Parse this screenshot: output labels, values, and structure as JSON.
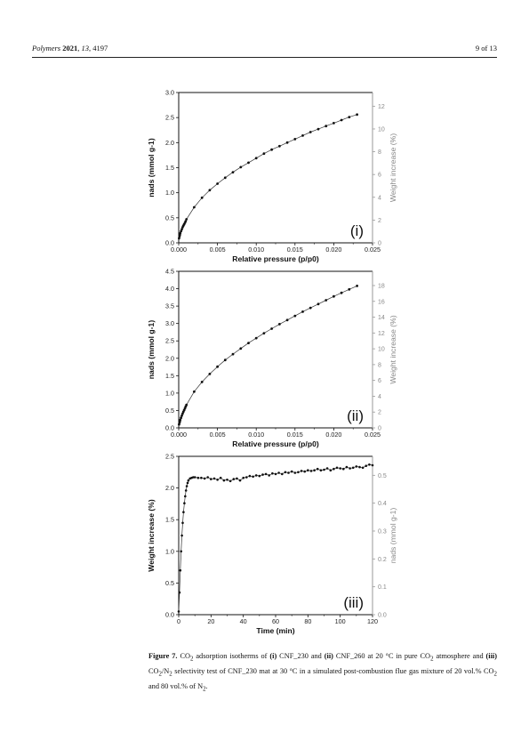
{
  "header": {
    "journal": "Polymers",
    "year": "2021",
    "volume": "13",
    "article": "4197",
    "page": "9 of 13"
  },
  "caption": {
    "label": "Figure 7.",
    "text_parts": [
      {
        "t": "CO"
      },
      {
        "sub": "2"
      },
      {
        "t": " adsorption isotherms of "
      },
      {
        "b": "(i)"
      },
      {
        "t": " CNF_230 and "
      },
      {
        "b": "(ii)"
      },
      {
        "t": " CNF_260 at 20 °C in pure CO"
      },
      {
        "sub": "2"
      },
      {
        "t": " atmosphere and "
      },
      {
        "b": "(iii)"
      },
      {
        "t": " CO"
      },
      {
        "sub": "2"
      },
      {
        "t": "/N"
      },
      {
        "sub": "2"
      },
      {
        "t": " selectivity test of CNF_230 mat at 30 °C in a simulated post-combustion flue gas mixture of 20 vol.% CO"
      },
      {
        "sub": "2"
      },
      {
        "t": " and 80 vol.% of N"
      },
      {
        "sub": "2"
      },
      {
        "t": "."
      }
    ]
  },
  "chart_data": [
    {
      "type": "scatter",
      "panel_label": "(i)",
      "xlabel": "Relative pressure (p/p0)",
      "ylabel": "nads (mmol g-1)",
      "y2label": "Weight increase (%)",
      "xlim": [
        0,
        0.025
      ],
      "ylim": [
        0,
        3.0
      ],
      "y2lim": [
        0,
        13.2
      ],
      "xticks": [
        "0.000",
        "0.005",
        "0.010",
        "0.015",
        "0.020",
        "0.025"
      ],
      "yticks": [
        "0.0",
        "0.5",
        "1.0",
        "1.5",
        "2.0",
        "2.5",
        "3.0"
      ],
      "y2ticks": [
        "0",
        "2",
        "4",
        "6",
        "8",
        "10",
        "12"
      ],
      "series": [
        {
          "x": [
            5e-05,
            0.0001,
            0.00015,
            0.0002,
            0.0003,
            0.0004,
            0.0005,
            0.0006,
            0.0007,
            0.0008,
            0.0009,
            0.001,
            0.002,
            0.003,
            0.004,
            0.005,
            0.006,
            0.007,
            0.008,
            0.009,
            0.01,
            0.011,
            0.012,
            0.013,
            0.014,
            0.015,
            0.016,
            0.017,
            0.018,
            0.019,
            0.02,
            0.021,
            0.022,
            0.023
          ],
          "y": [
            0.09,
            0.13,
            0.16,
            0.19,
            0.23,
            0.27,
            0.31,
            0.34,
            0.37,
            0.4,
            0.43,
            0.47,
            0.71,
            0.9,
            1.05,
            1.18,
            1.3,
            1.41,
            1.51,
            1.6,
            1.69,
            1.78,
            1.86,
            1.93,
            2.0,
            2.07,
            2.14,
            2.21,
            2.27,
            2.33,
            2.39,
            2.45,
            2.51,
            2.56
          ]
        }
      ]
    },
    {
      "type": "scatter",
      "panel_label": "(ii)",
      "xlabel": "Relative pressure (p/p0)",
      "ylabel": "nads (mmol g-1)",
      "y2label": "Weight increase (%)",
      "xlim": [
        0,
        0.025
      ],
      "ylim": [
        0,
        4.5
      ],
      "y2lim": [
        0,
        19.8
      ],
      "xticks": [
        "0.000",
        "0.005",
        "0.010",
        "0.015",
        "0.020",
        "0.025"
      ],
      "yticks": [
        "0.0",
        "0.5",
        "1.0",
        "1.5",
        "2.0",
        "2.5",
        "3.0",
        "3.5",
        "4.0",
        "4.5"
      ],
      "y2ticks": [
        "0",
        "2",
        "4",
        "6",
        "8",
        "10",
        "12",
        "14",
        "16",
        "18"
      ],
      "series": [
        {
          "x": [
            5e-05,
            0.0001,
            0.00015,
            0.0002,
            0.0003,
            0.0004,
            0.0005,
            0.0006,
            0.0007,
            0.0008,
            0.0009,
            0.001,
            0.002,
            0.003,
            0.004,
            0.005,
            0.006,
            0.007,
            0.008,
            0.009,
            0.01,
            0.011,
            0.012,
            0.013,
            0.014,
            0.015,
            0.016,
            0.017,
            0.018,
            0.019,
            0.02,
            0.021,
            0.022,
            0.023
          ],
          "y": [
            0.1,
            0.15,
            0.19,
            0.23,
            0.29,
            0.35,
            0.41,
            0.46,
            0.51,
            0.56,
            0.61,
            0.66,
            1.04,
            1.32,
            1.55,
            1.76,
            1.95,
            2.12,
            2.28,
            2.44,
            2.58,
            2.72,
            2.85,
            2.98,
            3.1,
            3.22,
            3.34,
            3.45,
            3.56,
            3.67,
            3.78,
            3.88,
            3.98,
            4.08
          ]
        }
      ]
    },
    {
      "type": "scatter",
      "panel_label": "(iii)",
      "xlabel": "Time (min)",
      "ylabel": "Weight increase (%)",
      "y2label": "nads (mmol g-1)",
      "xlim": [
        0,
        120
      ],
      "ylim": [
        0,
        2.5
      ],
      "y2lim": [
        0,
        0.568
      ],
      "xticks": [
        "0",
        "20",
        "40",
        "60",
        "80",
        "100",
        "120"
      ],
      "yticks": [
        "0.0",
        "0.5",
        "1.0",
        "1.5",
        "2.0",
        "2.5"
      ],
      "y2ticks": [
        "0.0",
        "0.1",
        "0.2",
        "0.3",
        "0.4",
        "0.5"
      ],
      "series": [
        {
          "x": [
            0,
            0.5,
            1,
            1.5,
            2,
            2.5,
            3,
            3.5,
            4,
            4.5,
            5,
            5.5,
            6,
            7,
            8,
            9,
            10,
            12,
            14,
            16,
            18,
            20,
            22,
            24,
            26,
            28,
            30,
            32,
            34,
            36,
            38,
            40,
            42,
            44,
            46,
            48,
            50,
            52,
            54,
            56,
            58,
            60,
            62,
            64,
            66,
            68,
            70,
            72,
            74,
            76,
            78,
            80,
            82,
            84,
            86,
            88,
            90,
            92,
            94,
            96,
            98,
            100,
            102,
            104,
            106,
            108,
            110,
            112,
            114,
            116,
            118,
            120
          ],
          "y": [
            0.05,
            0.35,
            0.7,
            1.0,
            1.25,
            1.45,
            1.62,
            1.76,
            1.87,
            1.96,
            2.03,
            2.08,
            2.12,
            2.15,
            2.16,
            2.17,
            2.17,
            2.16,
            2.16,
            2.15,
            2.17,
            2.14,
            2.15,
            2.13,
            2.16,
            2.12,
            2.13,
            2.11,
            2.14,
            2.15,
            2.12,
            2.16,
            2.17,
            2.19,
            2.18,
            2.2,
            2.19,
            2.21,
            2.22,
            2.2,
            2.23,
            2.22,
            2.24,
            2.22,
            2.25,
            2.24,
            2.26,
            2.24,
            2.25,
            2.27,
            2.26,
            2.28,
            2.27,
            2.28,
            2.3,
            2.28,
            2.29,
            2.31,
            2.28,
            2.3,
            2.32,
            2.31,
            2.3,
            2.33,
            2.31,
            2.32,
            2.34,
            2.33,
            2.32,
            2.35,
            2.37,
            2.36
          ]
        }
      ]
    }
  ]
}
